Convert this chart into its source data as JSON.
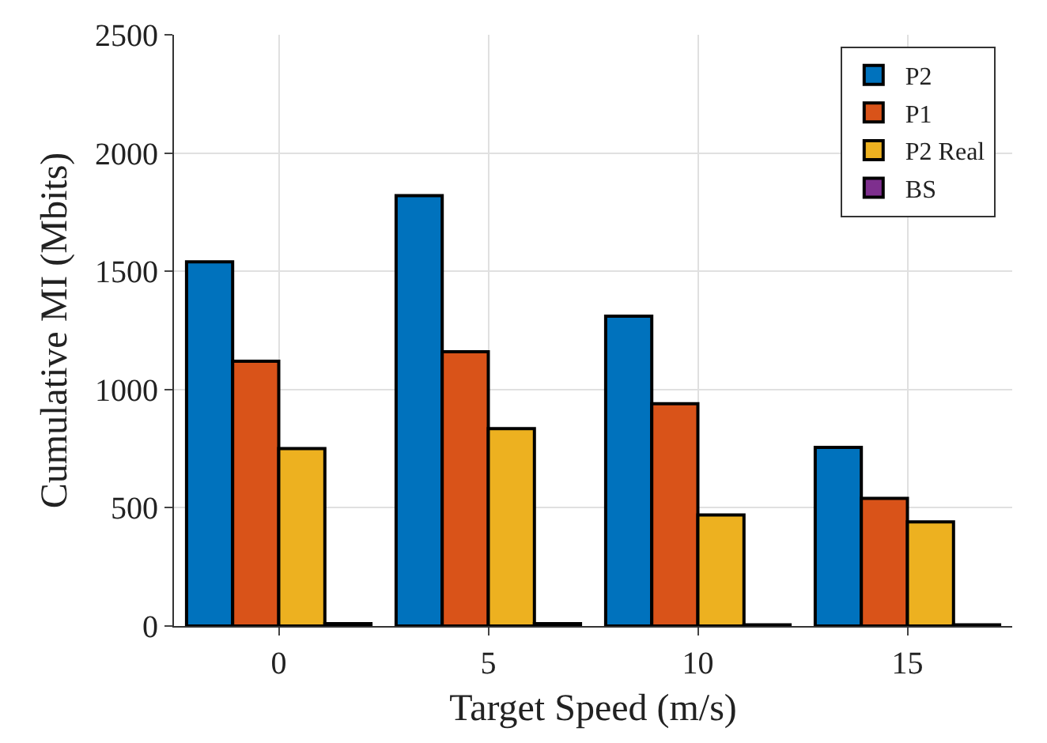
{
  "chart_data": {
    "type": "bar",
    "xlabel": "Target Speed (m/s)",
    "ylabel": "Cumulative MI (Mbits)",
    "categories": [
      "0",
      "5",
      "10",
      "15"
    ],
    "series": [
      {
        "name": "P2",
        "color": "#0072bd",
        "values": [
          1540,
          1820,
          1310,
          755
        ]
      },
      {
        "name": "P1",
        "color": "#d95319",
        "values": [
          1120,
          1160,
          940,
          540
        ]
      },
      {
        "name": "P2 Real",
        "color": "#edb120",
        "values": [
          750,
          835,
          470,
          440
        ]
      },
      {
        "name": "BS",
        "color": "#7e2f8e",
        "values": [
          10,
          10,
          5,
          5
        ]
      }
    ],
    "ylim": [
      0,
      2500
    ],
    "yticks": [
      0,
      500,
      1000,
      1500,
      2000,
      2500
    ],
    "grid": true,
    "legend": "top right"
  }
}
